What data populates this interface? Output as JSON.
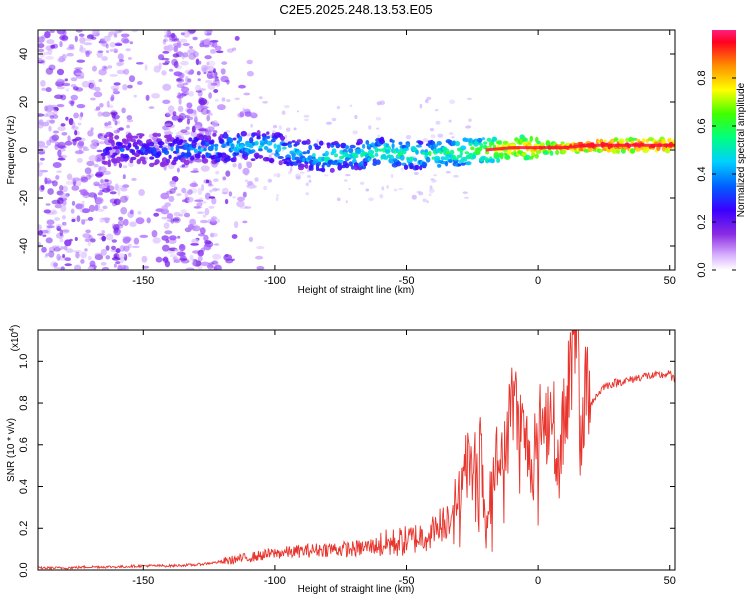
{
  "chart_data": [
    {
      "type": "heatmap",
      "title": "C2E5.2025.248.13.53.E05",
      "xlabel": "Height of straight line (km)",
      "ylabel": "Frequency (Hz)",
      "xlim": [
        -190,
        52
      ],
      "ylim": [
        -50,
        50
      ],
      "xticks": [
        -150,
        -100,
        -50,
        0,
        50
      ],
      "xtick_labels": [
        "-150",
        "-100",
        "-50",
        "0",
        "50"
      ],
      "yticks": [
        -40,
        -20,
        0,
        20,
        40
      ],
      "ytick_labels": [
        "-40",
        "-20",
        "0",
        "20",
        "40"
      ],
      "colorbar": {
        "label": "Normalized spectral amplitude",
        "range": [
          0,
          1
        ],
        "ticks": [
          0.0,
          0.2,
          0.4,
          0.6,
          0.8
        ],
        "tick_labels": [
          "0.0",
          "0.2",
          "0.4",
          "0.6",
          "0.8"
        ]
      },
      "ridge": {
        "x": [
          -165,
          -150,
          -140,
          -130,
          -120,
          -110,
          -100,
          -90,
          -80,
          -70,
          -60,
          -50,
          -40,
          -30,
          -20,
          -10,
          0,
          10,
          20,
          30,
          40,
          52
        ],
        "frequency": [
          0,
          0,
          0,
          0,
          1,
          2,
          1,
          -2,
          -3,
          -2,
          -1,
          -2,
          -2,
          -1,
          0,
          1,
          1,
          1,
          2,
          2,
          2,
          2
        ],
        "amplitude": [
          0.3,
          0.3,
          0.35,
          0.4,
          0.45,
          0.45,
          0.45,
          0.45,
          0.5,
          0.5,
          0.55,
          0.55,
          0.55,
          0.6,
          0.7,
          0.8,
          0.85,
          0.9,
          0.95,
          0.95,
          0.95,
          0.95
        ]
      }
    },
    {
      "type": "line",
      "xlabel": "Height of straight line (km)",
      "ylabel": "SNR (10 * v/v)",
      "y_multiplier_label": "(x10",
      "y_multiplier_exp": "4",
      "y_multiplier_close": ")",
      "xlim": [
        -190,
        52
      ],
      "ylim": [
        0,
        1.15
      ],
      "xticks": [
        -150,
        -100,
        -50,
        0,
        50
      ],
      "xtick_labels": [
        "-150",
        "-100",
        "-50",
        "0",
        "50"
      ],
      "yticks": [
        0.0,
        0.2,
        0.4,
        0.6,
        0.8,
        1.0
      ],
      "ytick_labels": [
        "0.0",
        "0.2",
        "0.4",
        "0.6",
        "0.8",
        "1.0"
      ],
      "color": "#e8342c",
      "series": [
        {
          "name": "SNR",
          "x": [
            -190,
            -180,
            -170,
            -160,
            -150,
            -140,
            -130,
            -120,
            -110,
            -100,
            -90,
            -80,
            -70,
            -60,
            -50,
            -40,
            -35,
            -30,
            -27,
            -25,
            -22,
            -20,
            -18,
            -15,
            -12,
            -10,
            -8,
            -5,
            -2,
            0,
            3,
            5,
            8,
            10,
            13,
            15,
            16,
            18,
            20,
            25,
            30,
            35,
            40,
            45,
            50,
            52
          ],
          "values": [
            0.01,
            0.01,
            0.015,
            0.015,
            0.02,
            0.02,
            0.025,
            0.04,
            0.06,
            0.08,
            0.09,
            0.1,
            0.1,
            0.12,
            0.14,
            0.18,
            0.24,
            0.36,
            0.55,
            0.45,
            0.62,
            0.15,
            0.38,
            0.58,
            0.55,
            0.9,
            0.72,
            0.63,
            0.5,
            0.7,
            0.68,
            0.82,
            0.45,
            0.8,
            0.98,
            1.12,
            0.6,
            0.85,
            0.8,
            0.88,
            0.9,
            0.91,
            0.93,
            0.93,
            0.94,
            0.9
          ]
        }
      ]
    }
  ]
}
